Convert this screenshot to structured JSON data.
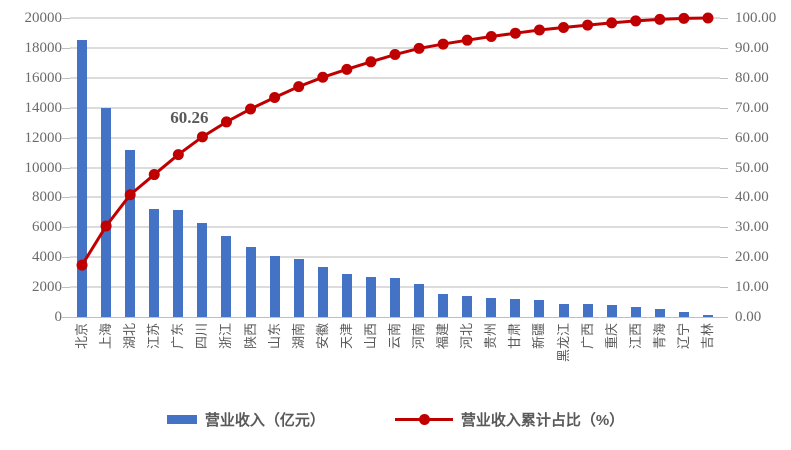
{
  "chart_data": {
    "type": "bar",
    "subtype": "pareto-combo-bar-line",
    "title": "",
    "categories": [
      "北京",
      "上海",
      "湖北",
      "江苏",
      "广东",
      "四川",
      "浙江",
      "陕西",
      "山东",
      "湖南",
      "安徽",
      "天津",
      "山西",
      "云南",
      "河南",
      "福建",
      "河北",
      "贵州",
      "甘肃",
      "新疆",
      "黑龙江",
      "广西",
      "重庆",
      "江西",
      "青海",
      "辽宁",
      "吉林"
    ],
    "series": [
      {
        "name": "营业收入（亿元）",
        "type": "bar",
        "axis": "left",
        "color": "#4472C4",
        "values": [
          18500,
          14000,
          11200,
          7250,
          7150,
          6300,
          5400,
          4650,
          4100,
          3900,
          3350,
          2850,
          2700,
          2600,
          2200,
          1550,
          1400,
          1300,
          1200,
          1150,
          900,
          850,
          800,
          700,
          550,
          350,
          150
        ]
      },
      {
        "name": "营业收入累计占比（%）",
        "type": "line",
        "axis": "right",
        "color": "#C00000",
        "values": [
          17.36,
          30.42,
          40.88,
          47.64,
          54.32,
          60.26,
          65.24,
          69.58,
          73.41,
          77.05,
          80.17,
          82.83,
          85.35,
          87.78,
          89.83,
          91.28,
          92.58,
          93.8,
          94.92,
          95.99,
          96.83,
          97.62,
          98.37,
          99.02,
          99.53,
          99.86,
          100.0
        ]
      }
    ],
    "left_axis": {
      "min": 0,
      "max": 20000,
      "step": 2000,
      "tick_labels": [
        "0",
        "2000",
        "4000",
        "6000",
        "8000",
        "10000",
        "12000",
        "14000",
        "16000",
        "18000",
        "20000"
      ]
    },
    "right_axis": {
      "min": 0,
      "max": 100,
      "step": 10,
      "tick_labels": [
        "0.00",
        "10.00",
        "20.00",
        "30.00",
        "40.00",
        "50.00",
        "60.00",
        "70.00",
        "80.00",
        "90.00",
        "100.00"
      ]
    },
    "annotation": {
      "text": "60.26",
      "series_index": 1,
      "point_index": 5
    },
    "legend": [
      "营业收入（亿元）",
      "营业收入累计占比（%）"
    ],
    "legend_position": "bottom",
    "grid": true,
    "colors": {
      "bar": "#4472C4",
      "line": "#C00000",
      "grid": "#DCDCDC",
      "axis_text": "#6B6B6B",
      "category_text": "#595959"
    }
  }
}
